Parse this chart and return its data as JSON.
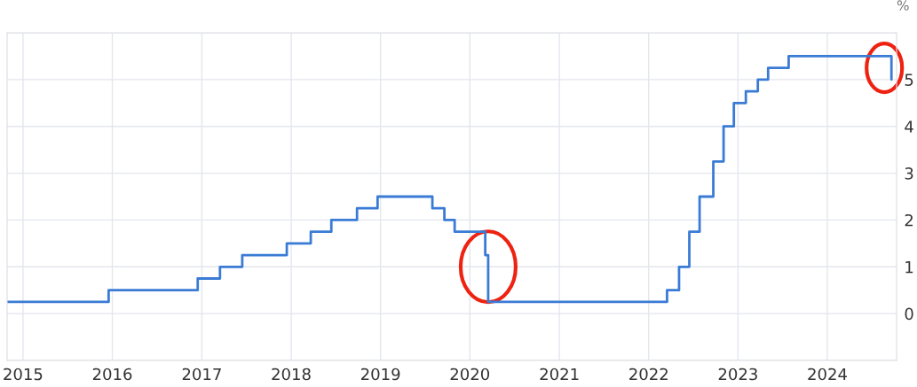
{
  "chart_data": {
    "type": "step",
    "ylabel": "%",
    "x": [
      "2014-10-28",
      "2015-12-17",
      "2016-12-15",
      "2017-03-16",
      "2017-06-15",
      "2017-12-14",
      "2018-03-22",
      "2018-06-14",
      "2018-09-27",
      "2018-12-20",
      "2019-08-01",
      "2019-09-19",
      "2019-10-31",
      "2020-03-04",
      "2020-03-16",
      "2022-03-17",
      "2022-05-05",
      "2022-06-16",
      "2022-07-28",
      "2022-09-22",
      "2022-11-03",
      "2022-12-15",
      "2023-02-02",
      "2023-03-23",
      "2023-05-04",
      "2023-07-27",
      "2024-09-19"
    ],
    "series": [
      {
        "color": "#3a7bd5",
        "values": [
          0.25,
          0.5,
          0.75,
          1.0,
          1.25,
          1.5,
          1.75,
          2.0,
          2.25,
          2.5,
          2.25,
          2.0,
          1.75,
          1.25,
          0.25,
          0.5,
          1.0,
          1.75,
          2.5,
          3.25,
          4.0,
          4.5,
          4.75,
          5.0,
          5.25,
          5.5,
          5.0
        ]
      }
    ],
    "xlim": [
      "2014-10-28",
      "2024-10-10"
    ],
    "xticks": [
      "2015",
      "2016",
      "2017",
      "2018",
      "2019",
      "2020",
      "2021",
      "2022",
      "2023",
      "2024"
    ],
    "ylim": [
      -1,
      6
    ],
    "yticks": [
      {
        "value": -1,
        "label": null
      },
      0,
      1,
      2,
      3,
      4,
      5,
      {
        "value": 6,
        "label": null
      }
    ],
    "grid": true,
    "line_style": "solid",
    "marker": "none"
  }
}
